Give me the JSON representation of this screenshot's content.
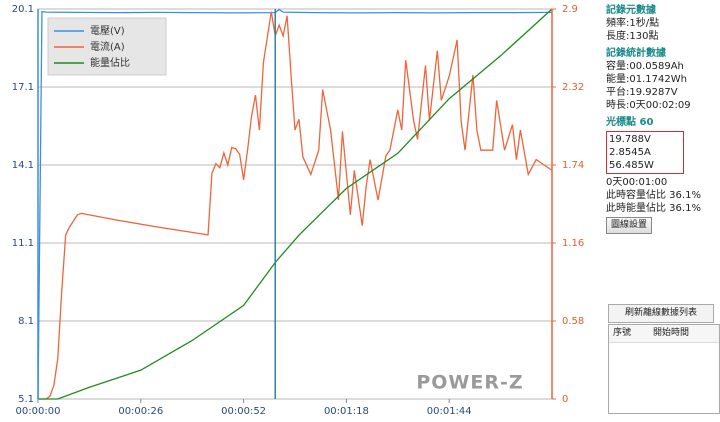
{
  "chart_data": {
    "type": "line",
    "xlim": [
      0,
      130
    ],
    "xticks": [
      {
        "value": 0,
        "label": "00:00:00"
      },
      {
        "value": 26,
        "label": "00:00:26"
      },
      {
        "value": 52,
        "label": "00:00:52"
      },
      {
        "value": 78,
        "label": "00:01:18"
      },
      {
        "value": 104,
        "label": "00:01:44"
      }
    ],
    "ylim": [
      5.1,
      20.1
    ],
    "yticks": [
      5.1,
      8.1,
      11.1,
      14.1,
      17.1,
      20.1
    ],
    "y2lim": [
      0,
      2.9
    ],
    "y2ticks": [
      0,
      0.58,
      1.16,
      1.74,
      2.32,
      2.9
    ],
    "y3lim": [
      0,
      100
    ],
    "grid": true,
    "legend": "top-left",
    "cursor": 60,
    "watermark": "POWER-Z",
    "series": [
      {
        "name": "電壓(V)",
        "color": "#3b8fe0",
        "axis": "y",
        "x": [
          0,
          1,
          2,
          10,
          20,
          30,
          40,
          50,
          60,
          61,
          62,
          70,
          80,
          90,
          100,
          110,
          120,
          130
        ],
        "values": [
          5.1,
          20.0,
          19.98,
          19.97,
          19.96,
          19.97,
          19.96,
          19.95,
          19.96,
          20.08,
          19.98,
          19.96,
          19.95,
          19.96,
          19.95,
          19.96,
          19.96,
          19.97
        ]
      },
      {
        "name": "電流(A)",
        "color": "#f0643c",
        "axis": "y2",
        "x": [
          0,
          2,
          3,
          4,
          5,
          6,
          7,
          8,
          10,
          11,
          20,
          30,
          43,
          44,
          45,
          46,
          47,
          48,
          49,
          50,
          51,
          52,
          53,
          54,
          55,
          56,
          57,
          59,
          60,
          61,
          62,
          63,
          64,
          65,
          66,
          67,
          69,
          71,
          72,
          74,
          76,
          77,
          79,
          80,
          82,
          83,
          84,
          86,
          88,
          89,
          91,
          92,
          93,
          95,
          96,
          98,
          99,
          101,
          102,
          104,
          106,
          107,
          108,
          110,
          111,
          112,
          115,
          116,
          118,
          120,
          121,
          122,
          124,
          126,
          128,
          130
        ],
        "values": [
          0,
          0,
          0.02,
          0.1,
          0.3,
          0.8,
          1.22,
          1.28,
          1.37,
          1.38,
          1.33,
          1.28,
          1.22,
          1.68,
          1.75,
          1.72,
          1.83,
          1.74,
          1.87,
          1.86,
          1.82,
          1.63,
          1.85,
          2.1,
          2.26,
          2.0,
          2.5,
          2.88,
          2.7,
          2.78,
          2.7,
          2.85,
          2.41,
          2.0,
          2.08,
          1.8,
          1.67,
          1.85,
          2.3,
          2.0,
          1.48,
          1.99,
          1.37,
          1.7,
          1.29,
          1.58,
          1.78,
          1.48,
          1.81,
          1.85,
          2.15,
          2.0,
          2.52,
          2.07,
          1.93,
          2.48,
          2.07,
          2.59,
          2.22,
          2.4,
          2.67,
          2.07,
          1.85,
          2.41,
          2.0,
          1.85,
          1.85,
          2.22,
          1.85,
          2.04,
          1.78,
          2.0,
          1.67,
          1.78,
          1.74,
          1.7
        ]
      },
      {
        "name": "能量佔比",
        "color": "#1e8c1e",
        "axis": "y3",
        "x": [
          0,
          5,
          13,
          26,
          39,
          52,
          60,
          66,
          78,
          91,
          104,
          117,
          130
        ],
        "values": [
          0,
          0,
          3,
          7.4,
          15,
          24,
          35,
          42,
          54,
          63,
          77,
          88,
          100
        ]
      }
    ]
  },
  "sidebar": {
    "meta_title": "記錄元數據",
    "rate": "頻率:1秒/點",
    "length": "長度:130點",
    "stats_title": "記錄統計數據",
    "capacity": "容量:00.0589Ah",
    "energy": "能量:01.1742Wh",
    "plateau": "平台:19.9287V",
    "duration": "時長:0天00:02:09",
    "cursor_title": "光標點",
    "cursor_index": 60,
    "voltage": "19.788V",
    "current": "2.8545A",
    "power": "56.485W",
    "time": "0天00:01:00",
    "capacity_ratio": "此時容量佔比 36.1%",
    "energy_ratio": "此時能量佔比 36.1%",
    "settings_button": "圖線設置",
    "refresh_button": "刷新離線數據列表",
    "table_headers": [
      "序號",
      "開始時間"
    ]
  }
}
